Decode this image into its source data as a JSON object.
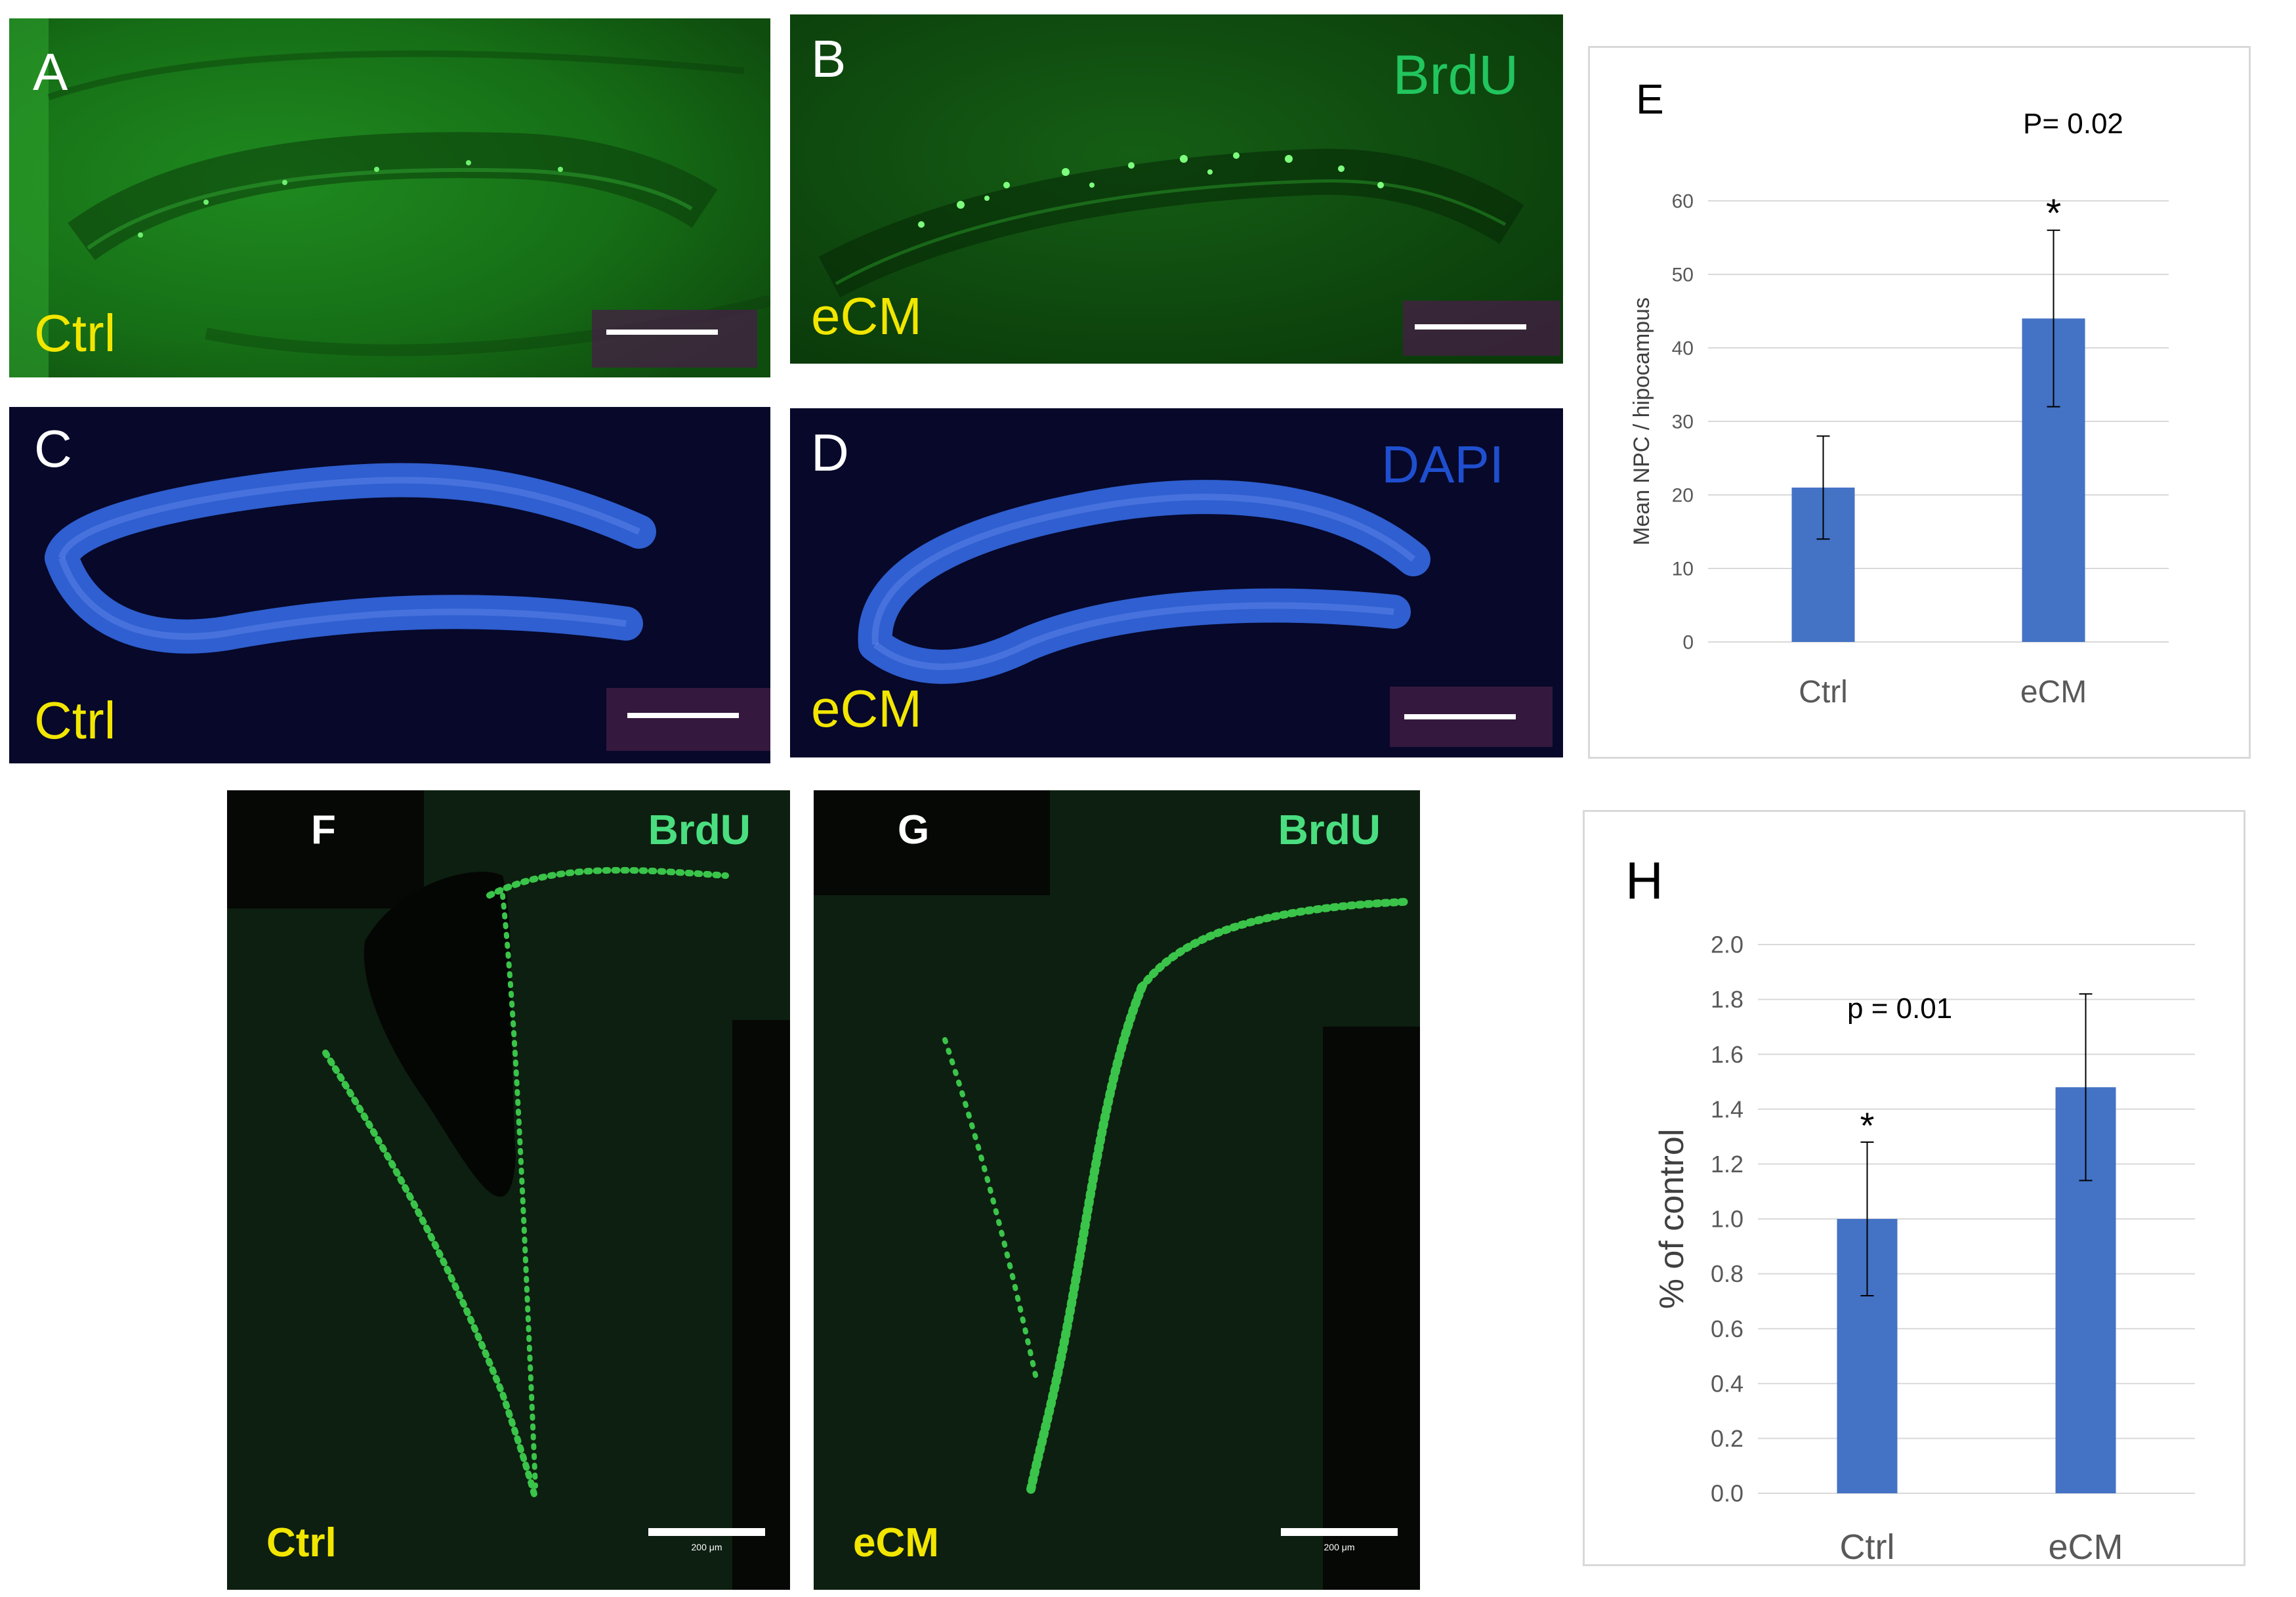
{
  "panels": {
    "A": {
      "letter": "A",
      "group": "Ctrl"
    },
    "B": {
      "letter": "B",
      "group": "eCM",
      "stain": "BrdU"
    },
    "C": {
      "letter": "C",
      "group": "Ctrl"
    },
    "D": {
      "letter": "D",
      "group": "eCM",
      "stain": "DAPI"
    },
    "F": {
      "letter": "F",
      "group": "Ctrl",
      "stain": "BrdU",
      "scale_label": "200 μm"
    },
    "G": {
      "letter": "G",
      "group": "eCM",
      "stain": "BrdU",
      "scale_label": "200 μm"
    }
  },
  "colors": {
    "label_yellow": "#f2e600",
    "brdu_green": "#22c55e",
    "dapi_blue": "#2f5fd0",
    "bar_blue": "#4472c4"
  },
  "chart_data": [
    {
      "panel": "E",
      "type": "bar",
      "categories": [
        "Ctrl",
        "eCM"
      ],
      "values": [
        21,
        44
      ],
      "error": [
        7,
        12
      ],
      "ylabel": "Mean NPC / hipocampus",
      "ylim": [
        0,
        60
      ],
      "yticks": [
        0,
        10,
        20,
        30,
        40,
        50,
        60
      ],
      "ytick_labels": [
        "0",
        "10",
        "20",
        "30",
        "40",
        "50",
        "60"
      ],
      "annotation": "P= 0.02",
      "significance": {
        "category": "eCM",
        "mark": "*"
      },
      "grid": true
    },
    {
      "panel": "H",
      "type": "bar",
      "categories": [
        "Ctrl",
        "eCM"
      ],
      "values": [
        1.0,
        1.48
      ],
      "error": [
        0.28,
        0.34
      ],
      "ylabel": "% of control",
      "ylim": [
        0,
        2.0
      ],
      "yticks": [
        0,
        0.2,
        0.4,
        0.6,
        0.8,
        1.0,
        1.2,
        1.4,
        1.6,
        1.8,
        2.0
      ],
      "ytick_labels": [
        "0.0",
        "0.2",
        "0.4",
        "0.6",
        "0.8",
        "1.0",
        "1.2",
        "1.4",
        "1.6",
        "1.8",
        "2.0"
      ],
      "annotation": "p = 0.01",
      "significance": {
        "category": "Ctrl",
        "mark": "*"
      },
      "grid": true
    }
  ]
}
